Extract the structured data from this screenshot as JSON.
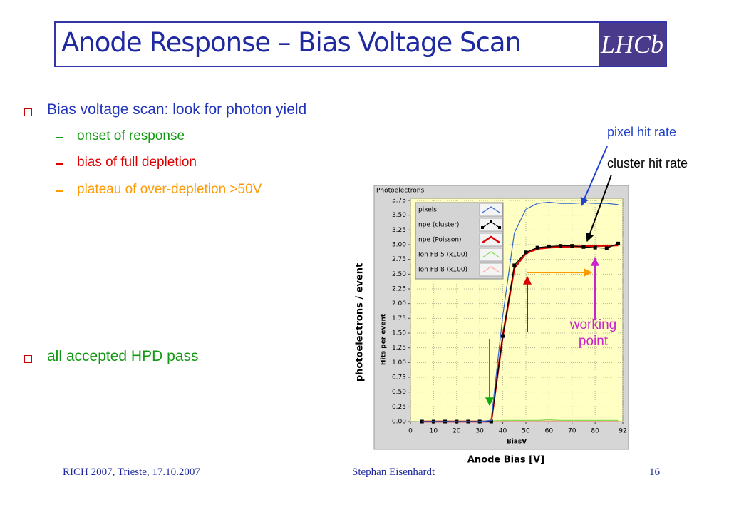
{
  "title": "Anode Response – Bias Voltage Scan",
  "logo": "LHCb",
  "bullets": [
    {
      "text": "Bias voltage scan: look for photon yield",
      "sub": [
        "onset of response",
        "bias of full depletion",
        "plateau of over-depletion >50V"
      ]
    },
    {
      "text": "all accepted HPD pass"
    }
  ],
  "annotations": {
    "pixel": "pixel hit rate",
    "cluster": "cluster hit rate",
    "working": "working point"
  },
  "chart_data": {
    "type": "line",
    "title": "Photoelectrons",
    "x_label": "BiasV",
    "y_label": "Hits per event",
    "outer_x_label": "Anode Bias [V]",
    "outer_y_label": "photoelectrons / event",
    "x": [
      5,
      10,
      15,
      20,
      25,
      30,
      35,
      40,
      45,
      50,
      55,
      60,
      65,
      70,
      75,
      80,
      85,
      90
    ],
    "series": [
      {
        "name": "pixels",
        "color": "#3366cc",
        "values": [
          0,
          0,
          0,
          0,
          0,
          0,
          0.02,
          1.8,
          3.2,
          3.6,
          3.7,
          3.72,
          3.7,
          3.7,
          3.71,
          3.7,
          3.7,
          3.68
        ]
      },
      {
        "name": "npe (cluster)",
        "color": "#000000",
        "marker": "square",
        "values": [
          0,
          0,
          0,
          0,
          0,
          0,
          0,
          1.45,
          2.65,
          2.87,
          2.95,
          2.97,
          2.98,
          2.98,
          2.96,
          2.95,
          2.94,
          3.02
        ]
      },
      {
        "name": "npe (Poisson)",
        "color": "#dd0000",
        "values": [
          0,
          0,
          0,
          0,
          0,
          0,
          0,
          1.45,
          2.6,
          2.85,
          2.93,
          2.95,
          2.96,
          2.97,
          2.97,
          2.98,
          2.98,
          2.99
        ]
      },
      {
        "name": "Ion FB 5 (x100)",
        "color": "#88dd55",
        "values": [
          0.01,
          0.01,
          0.01,
          0.01,
          0.01,
          0.01,
          0.01,
          0.02,
          0.02,
          0.02,
          0.02,
          0.03,
          0.02,
          0.02,
          0.02,
          0.02,
          0.02,
          0.02
        ]
      },
      {
        "name": "Ion FB 8 (x100)",
        "color": "#ffaa99",
        "values": [
          0,
          0,
          0,
          0,
          0,
          0,
          0,
          0.01,
          0.01,
          0.01,
          0.01,
          0.01,
          0.01,
          0.01,
          0.01,
          0.01,
          0.01,
          0.01
        ]
      }
    ],
    "xlim": [
      0,
      92
    ],
    "xticks": [
      0,
      10,
      20,
      30,
      40,
      50,
      60,
      70,
      80,
      92
    ],
    "ylim": [
      0,
      3.75
    ],
    "yticks": [
      {
        "value": 0,
        "label": "0.00"
      },
      {
        "value": 0.25,
        "label": "0.25"
      },
      {
        "value": 0.5,
        "label": "0.50"
      },
      {
        "value": 0.75,
        "label": "0.75"
      },
      {
        "value": 1,
        "label": "1.00"
      },
      {
        "value": 1.25,
        "label": "1.25"
      },
      {
        "value": 1.5,
        "label": "1.50"
      },
      {
        "value": 1.75,
        "label": "1.75"
      },
      {
        "value": 2,
        "label": "2.00"
      },
      {
        "value": 2.25,
        "label": "2.25"
      },
      {
        "value": 2.5,
        "label": "2.50"
      },
      {
        "value": 2.75,
        "label": "2.75"
      },
      {
        "value": 3,
        "label": "3.00"
      },
      {
        "value": 3.25,
        "label": "3.25"
      },
      {
        "value": 3.5,
        "label": "3.50"
      },
      {
        "value": 3.75,
        "label": "3.75"
      }
    ],
    "grid": true,
    "legend": "top-left"
  },
  "footer": {
    "left": "RICH 2007, Trieste, 17.10.2007",
    "center": "Stephan Eisenhardt",
    "right": "16"
  }
}
